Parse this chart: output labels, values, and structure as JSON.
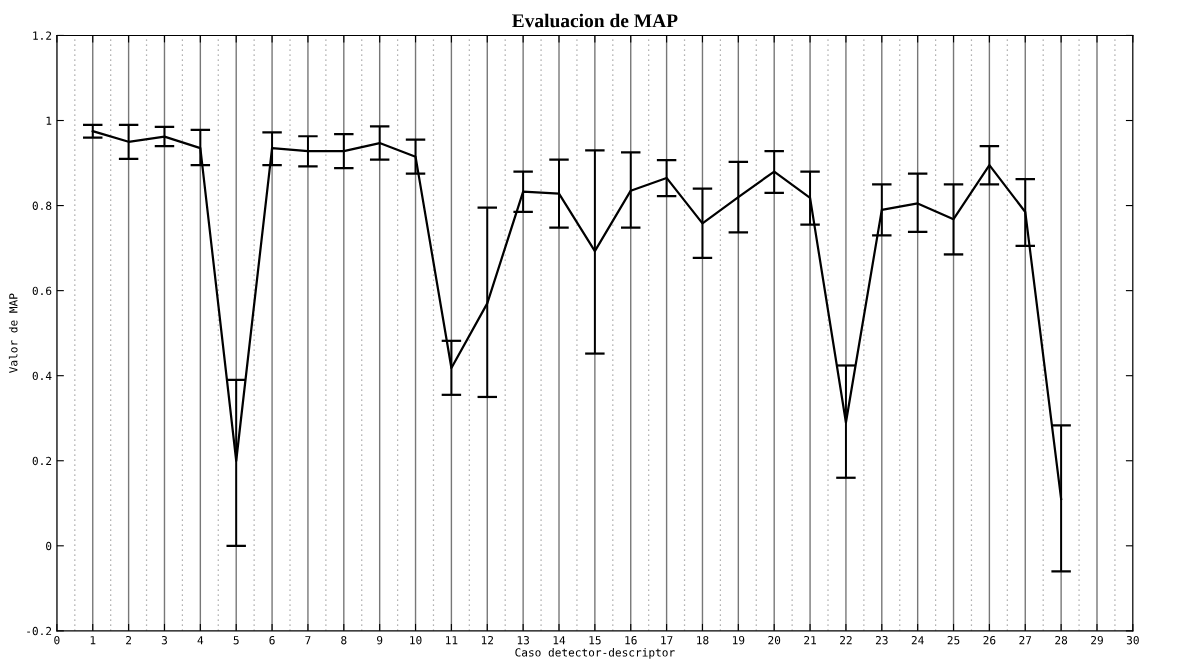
{
  "chart_data": {
    "type": "line",
    "title": "Evaluacion de MAP",
    "xlabel": "Caso detector-descriptor",
    "ylabel": "Valor de MAP",
    "x": [
      1,
      2,
      3,
      4,
      5,
      6,
      7,
      8,
      9,
      10,
      11,
      12,
      13,
      14,
      15,
      16,
      17,
      18,
      19,
      20,
      21,
      22,
      23,
      24,
      25,
      26,
      27,
      28
    ],
    "series": [
      {
        "color": "#000000",
        "values": [
          0.975,
          0.95,
          0.962,
          0.935,
          0.2,
          0.935,
          0.928,
          0.928,
          0.947,
          0.915,
          0.418,
          0.57,
          0.833,
          0.828,
          0.693,
          0.835,
          0.865,
          0.758,
          0.82,
          0.88,
          0.818,
          0.29,
          0.79,
          0.805,
          0.768,
          0.895,
          0.785,
          0.11
        ],
        "errors": [
          [
            0.96,
            0.99
          ],
          [
            0.91,
            0.99
          ],
          [
            0.94,
            0.985
          ],
          [
            0.895,
            0.978
          ],
          [
            0.0,
            0.39
          ],
          [
            0.895,
            0.972
          ],
          [
            0.892,
            0.963
          ],
          [
            0.888,
            0.968
          ],
          [
            0.908,
            0.986
          ],
          [
            0.875,
            0.955
          ],
          [
            0.355,
            0.482
          ],
          [
            0.35,
            0.795
          ],
          [
            0.785,
            0.88
          ],
          [
            0.748,
            0.908
          ],
          [
            0.452,
            0.93
          ],
          [
            0.748,
            0.925
          ],
          [
            0.822,
            0.907
          ],
          [
            0.677,
            0.84
          ],
          [
            0.737,
            0.903
          ],
          [
            0.83,
            0.928
          ],
          [
            0.755,
            0.88
          ],
          [
            0.16,
            0.424
          ],
          [
            0.73,
            0.85
          ],
          [
            0.738,
            0.875
          ],
          [
            0.685,
            0.85
          ],
          [
            0.85,
            0.94
          ],
          [
            0.705,
            0.862
          ],
          [
            -0.06,
            0.283
          ]
        ]
      }
    ],
    "xlim": [
      0,
      30
    ],
    "xticks": [
      0,
      1,
      2,
      3,
      4,
      5,
      6,
      7,
      8,
      9,
      10,
      11,
      12,
      13,
      14,
      15,
      16,
      17,
      18,
      19,
      20,
      21,
      22,
      23,
      24,
      25,
      26,
      27,
      28,
      29,
      30
    ],
    "ylim": [
      -0.2,
      1.2
    ],
    "yticks": [
      -0.2,
      0,
      0.2,
      0.4,
      0.6,
      0.8,
      1,
      1.2
    ],
    "grid": "x",
    "marker": "none",
    "line_style": "solid",
    "legend": false
  }
}
